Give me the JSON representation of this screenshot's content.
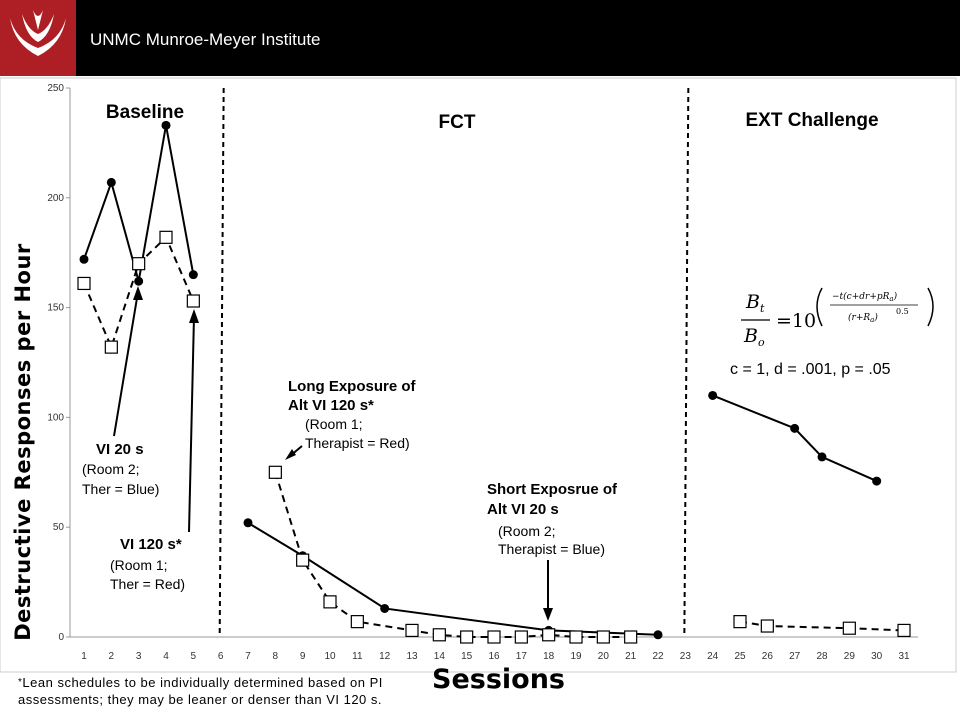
{
  "header": {
    "title": "UNMC Munroe-Meyer Institute",
    "brand_color": "#ad1f24",
    "logo_icon": "unmc-logo-icon"
  },
  "chart_data": {
    "type": "line",
    "title": "",
    "xlabel": "Sessions",
    "ylabel": "Destructive Responses per Hour",
    "xlim": [
      1,
      31
    ],
    "ylim": [
      0,
      250
    ],
    "xticks": [
      1,
      2,
      3,
      4,
      5,
      6,
      7,
      8,
      9,
      10,
      11,
      12,
      13,
      14,
      15,
      16,
      17,
      18,
      19,
      20,
      21,
      22,
      23,
      24,
      25,
      26,
      27,
      28,
      29,
      30,
      31
    ],
    "yticks": [
      0,
      50,
      100,
      150,
      200,
      250
    ],
    "phases": [
      {
        "label": "Baseline",
        "start": 1,
        "end": 5
      },
      {
        "label": "FCT",
        "start": 7,
        "end": 22
      },
      {
        "label": "EXT Challenge",
        "start": 24,
        "end": 31
      }
    ],
    "phase_lines": [
      6,
      23
    ],
    "series": [
      {
        "name": "",
        "style": "solid",
        "marker": "filled-circle",
        "points": [
          [
            1,
            172
          ],
          [
            2,
            207
          ],
          [
            3,
            162
          ],
          [
            4,
            233
          ],
          [
            5,
            165
          ]
        ]
      },
      {
        "name": "",
        "style": "dashed",
        "marker": "open-square",
        "points": [
          [
            1,
            161
          ],
          [
            2,
            132
          ],
          [
            3,
            170
          ],
          [
            4,
            182
          ],
          [
            5,
            153
          ]
        ]
      },
      {
        "name": "",
        "style": "solid",
        "marker": "filled-circle",
        "points": [
          [
            7,
            52
          ],
          [
            9,
            37
          ],
          [
            12,
            13
          ],
          [
            18,
            3
          ],
          [
            22,
            1
          ]
        ]
      },
      {
        "name": "",
        "style": "dashed",
        "marker": "open-square",
        "points": [
          [
            8,
            75
          ],
          [
            9,
            35
          ],
          [
            10,
            16
          ],
          [
            11,
            7
          ],
          [
            13,
            3
          ],
          [
            14,
            1
          ],
          [
            15,
            0
          ],
          [
            16,
            0
          ],
          [
            17,
            0
          ],
          [
            18,
            1
          ],
          [
            19,
            0
          ],
          [
            20,
            0
          ],
          [
            21,
            0
          ]
        ]
      },
      {
        "name": "",
        "style": "solid",
        "marker": "filled-circle",
        "points": [
          [
            24,
            110
          ],
          [
            27,
            95
          ],
          [
            28,
            82
          ],
          [
            30,
            71
          ]
        ]
      },
      {
        "name": "",
        "style": "dashed",
        "marker": "open-square",
        "points": [
          [
            25,
            7
          ],
          [
            26,
            5
          ],
          [
            29,
            4
          ],
          [
            31,
            3
          ]
        ]
      }
    ],
    "annotations": {
      "vi20_title": "VI 20 s",
      "vi20_detail": [
        "(Room 2;",
        "Ther = Blue)"
      ],
      "vi120_title": "VI 120 s*",
      "vi120_detail": [
        "(Room 1;",
        "Ther = Red)"
      ],
      "long_title": [
        "Long Exposure of",
        "Alt VI 120 s*"
      ],
      "long_detail": [
        "(Room 1;",
        "Therapist = Red)"
      ],
      "short_title": [
        "Short Exposrue of",
        "Alt VI 20 s"
      ],
      "short_detail": [
        "(Room 2;",
        "Therapist = Blue)"
      ],
      "formula_params": [
        "c = 1, ",
        "d = .001, ",
        "p = .05"
      ]
    }
  },
  "footnote": {
    "star": "*",
    "text": "Lean schedules to be individually determined based on PI assessments; they may be leaner or denser than VI 120 s."
  }
}
